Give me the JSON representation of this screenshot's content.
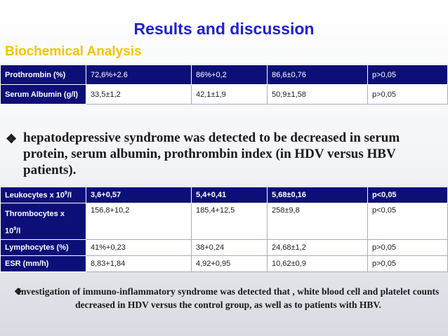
{
  "title": "Results and discussion",
  "subtitle": "Biochemical Analysis",
  "table1": {
    "rows": [
      {
        "label": "Prothrombin (%)",
        "c1": "72,6%+2.6",
        "c2": "86%+0,2",
        "c3": "86,6±0,76",
        "c4": "p>0,05"
      },
      {
        "label": "Serum Albumin (g/l)",
        "c1": "33,5±1,2",
        "c2": "42,1±1,9",
        "c3": "50,9±1,58",
        "c4": "p>0,05"
      }
    ]
  },
  "bullet1": {
    "marker": "❖",
    "text": "hepatodepressive syndrome was detected to be decreased in serum protein, serum albumin, prothrombin index (in HDV versus HBV patients)."
  },
  "table2": {
    "header": {
      "label_pre": "Leukocytes x 10",
      "label_sup": "9",
      "label_post": "/l",
      "c1": "3,6+0,57",
      "c2": "5,4+0,41",
      "c3": "5,68±0,16",
      "c4": "p<0,05"
    },
    "rows": [
      {
        "label_pre": "Thrombocytes x 10",
        "label_sup": "9",
        "label_post": "/l",
        "c1": "156,8+10,2",
        "c2": "185,4+12,5",
        "c3": "258±9,8",
        "c4": "p<0,05"
      },
      {
        "label": "Lymphocytes (%)",
        "c1": "41%+0,23",
        "c2": "38+0,24",
        "c3": "24,68±1,2",
        "c4": "p>0,05"
      },
      {
        "label": "ESR (mm/h)",
        "c1": "8,83+1,84",
        "c2": "4,92+0,95",
        "c3": "10,62±0,9",
        "c4": "p>0,05"
      }
    ]
  },
  "bullet2": {
    "marker": "❖",
    "text": "Investigation of immuno-inflammatory syndrome was detected that , white blood cell and platelet counts decreased in HDV versus the control group, as well as to patients with HBV."
  }
}
